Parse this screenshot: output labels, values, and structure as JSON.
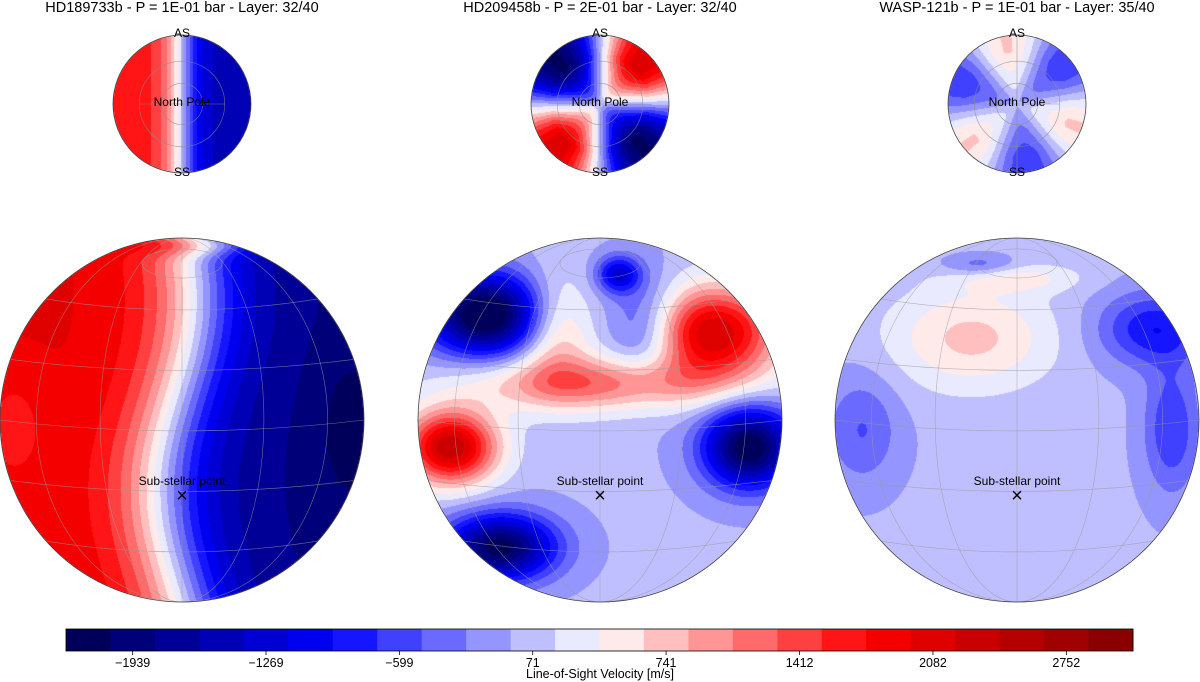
{
  "chart_data": {
    "type": "heatmap",
    "projection": "orthographic",
    "panels": [
      {
        "planet": "HD189733b",
        "title": "HD189733b - P = 1E-01 bar - Layer: 32/40",
        "pressure_bar": 0.1,
        "layer": "32/40",
        "pattern": "day-night",
        "pole_view": {
          "center_label": "North Pole",
          "top_label": "AS",
          "bottom_label": "SS"
        },
        "disk_view": {
          "marker_label": "Sub-stellar point",
          "marker_symbol": "×"
        },
        "velocity_range_ms": [
          -2300,
          1800
        ]
      },
      {
        "planet": "HD209458b",
        "title": "HD209458b - P = 2E-01 bar - Layer: 32/40",
        "pressure_bar": 0.2,
        "layer": "32/40",
        "pattern": "jets",
        "pole_view": {
          "center_label": "North Pole",
          "top_label": "AS",
          "bottom_label": "SS"
        },
        "disk_view": {
          "marker_label": "Sub-stellar point",
          "marker_symbol": "×"
        },
        "velocity_range_ms": [
          -2200,
          1900
        ]
      },
      {
        "planet": "WASP-121b",
        "title": "WASP-121b - P = 1E-01 bar - Layer: 35/40",
        "pressure_bar": 0.1,
        "layer": "35/40",
        "pattern": "weak",
        "pole_view": {
          "center_label": "North Pole",
          "top_label": "AS",
          "bottom_label": "SS"
        },
        "disk_view": {
          "marker_label": "Sub-stellar point",
          "marker_symbol": "×"
        },
        "velocity_range_ms": [
          -600,
          400
        ]
      }
    ],
    "colorbar": {
      "label": "Line-of-Sight Velocity [m/s]",
      "range": [
        -2274,
        3087
      ],
      "levels": 24,
      "ticks": [
        -1939,
        -1269,
        -599,
        71,
        741,
        1412,
        2082,
        2752
      ],
      "tick_labels": [
        "−1939",
        "−1269",
        "−599",
        "71",
        "741",
        "1412",
        "2082",
        "2752"
      ],
      "colormap": "seismic",
      "colors": {
        "darkest_blue": "#00004c",
        "blue": "#0000ff",
        "white": "#ffffff",
        "red": "#ff0000",
        "darkest_red": "#7f0000"
      }
    },
    "grid": true
  }
}
